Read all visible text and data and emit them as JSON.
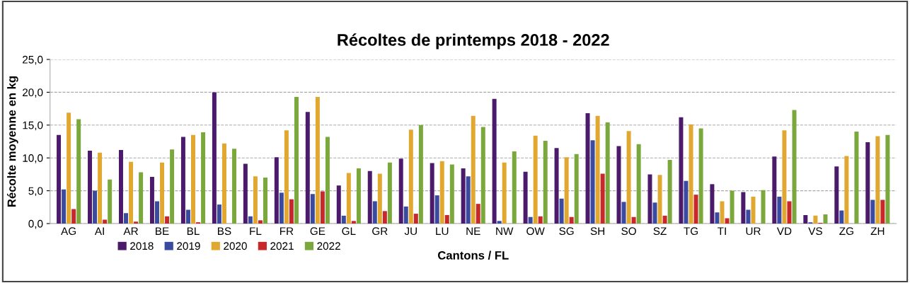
{
  "chart_data": {
    "type": "bar",
    "title": "Récoltes de printemps 2018 - 2022",
    "xlabel": "Cantons / FL",
    "ylabel": "Récolte moyenne en kg",
    "categories": [
      "AG",
      "AI",
      "AR",
      "BE",
      "BL",
      "BS",
      "FL",
      "FR",
      "GE",
      "GL",
      "GR",
      "JU",
      "LU",
      "NE",
      "NW",
      "OW",
      "SG",
      "SH",
      "SO",
      "SZ",
      "TG",
      "TI",
      "UR",
      "VD",
      "VS",
      "ZG",
      "ZH"
    ],
    "series": [
      {
        "name": "2018",
        "color": "#4b1a6b",
        "values": [
          13.5,
          11.1,
          11.2,
          7.1,
          13.2,
          20.0,
          9.1,
          10.1,
          17.0,
          5.8,
          8.0,
          9.9,
          9.2,
          8.4,
          19.0,
          7.9,
          11.5,
          16.8,
          11.8,
          7.5,
          16.2,
          6.0,
          4.8,
          10.2,
          1.3,
          8.7,
          12.4
        ]
      },
      {
        "name": "2019",
        "color": "#3a4aa0",
        "values": [
          5.2,
          5.0,
          1.6,
          3.4,
          2.1,
          2.9,
          1.1,
          4.7,
          4.5,
          1.2,
          3.4,
          2.6,
          4.3,
          7.2,
          0.4,
          1.0,
          3.8,
          12.7,
          3.3,
          3.2,
          6.5,
          1.7,
          2.1,
          4.1,
          0.2,
          2.0,
          3.6
        ]
      },
      {
        "name": "2020",
        "color": "#e0a830",
        "values": [
          16.9,
          10.8,
          9.4,
          9.3,
          13.5,
          12.2,
          7.2,
          14.2,
          19.3,
          7.7,
          7.6,
          14.3,
          9.5,
          16.4,
          9.3,
          13.4,
          10.1,
          16.4,
          14.1,
          7.4,
          15.1,
          3.4,
          4.1,
          14.2,
          1.2,
          10.3,
          13.3
        ]
      },
      {
        "name": "2021",
        "color": "#c8282a",
        "values": [
          2.2,
          0.6,
          0.3,
          1.1,
          0.2,
          0,
          0.5,
          3.7,
          4.9,
          0.4,
          1.9,
          1.5,
          1.3,
          3.0,
          0,
          1.1,
          1.0,
          7.6,
          1.0,
          1.2,
          4.4,
          0.8,
          0,
          3.4,
          0.1,
          0,
          3.6
        ]
      },
      {
        "name": "2022",
        "color": "#7aa83c",
        "values": [
          15.9,
          6.7,
          7.8,
          11.3,
          13.9,
          11.4,
          7.0,
          19.3,
          13.2,
          8.4,
          9.3,
          15.0,
          9.0,
          14.7,
          11.0,
          12.6,
          10.6,
          15.4,
          12.1,
          9.7,
          14.5,
          5.0,
          5.1,
          17.3,
          1.4,
          14.0,
          13.5
        ]
      }
    ],
    "ylim": [
      0,
      25
    ],
    "yticks": [
      {
        "value": 0,
        "label": "0,0"
      },
      {
        "value": 5,
        "label": "5,0"
      },
      {
        "value": 10,
        "label": "10,0"
      },
      {
        "value": 15,
        "label": "15,0"
      },
      {
        "value": 20,
        "label": "20,0"
      },
      {
        "value": 25,
        "label": "25,0"
      }
    ],
    "grid": "y",
    "legend": "bottom left"
  }
}
